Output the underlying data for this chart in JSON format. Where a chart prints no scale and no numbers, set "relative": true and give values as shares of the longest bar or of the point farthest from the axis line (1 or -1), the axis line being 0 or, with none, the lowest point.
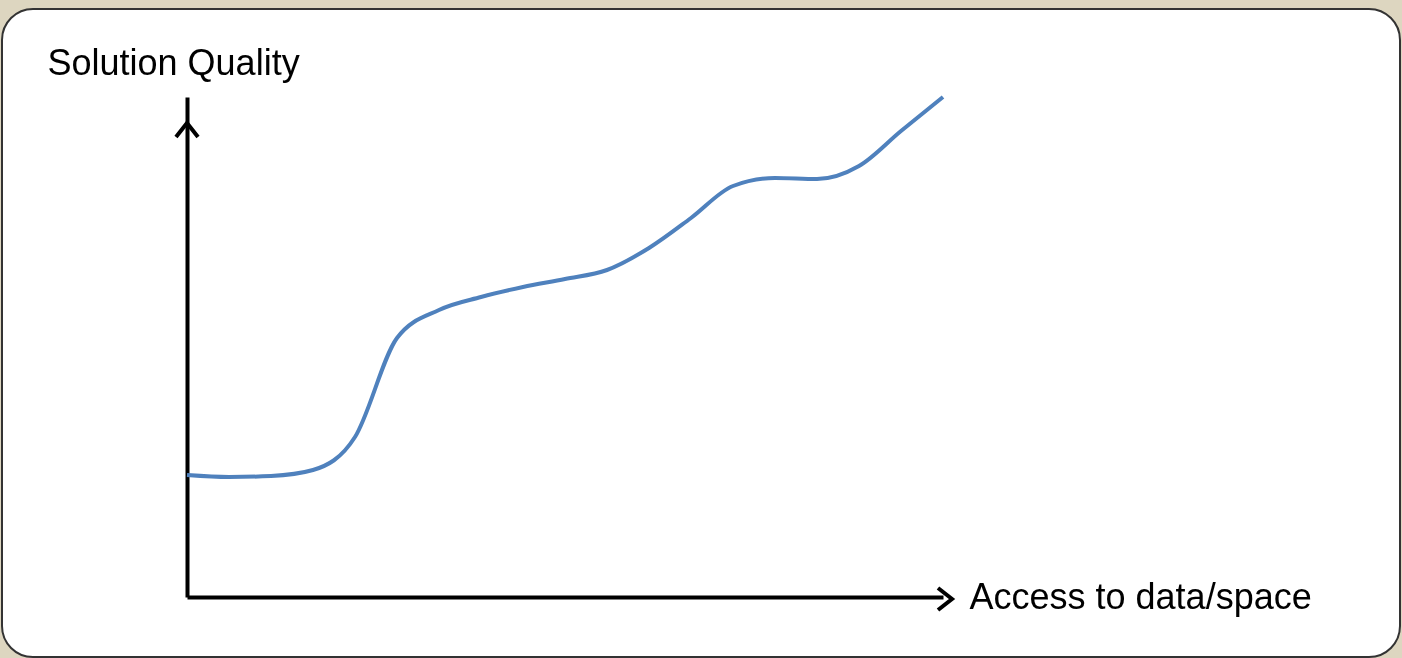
{
  "chart_data": {
    "type": "line",
    "relative": true,
    "xlabel": "Access to data/space",
    "ylabel": "Solution Quality",
    "categories": [
      null,
      null,
      null,
      null,
      null,
      null,
      null,
      null,
      null,
      null,
      null,
      null,
      null,
      null,
      null,
      null,
      null,
      null,
      null
    ],
    "series": [
      {
        "color": "#4f81bd",
        "values": [
          0.244,
          0.24,
          0.242,
          0.254,
          0.32,
          0.518,
          0.574,
          0.6,
          0.62,
          0.636,
          0.654,
          0.698,
          0.758,
          0.822,
          0.838,
          0.836,
          0.862,
          0.932,
          1.0
        ]
      }
    ]
  }
}
